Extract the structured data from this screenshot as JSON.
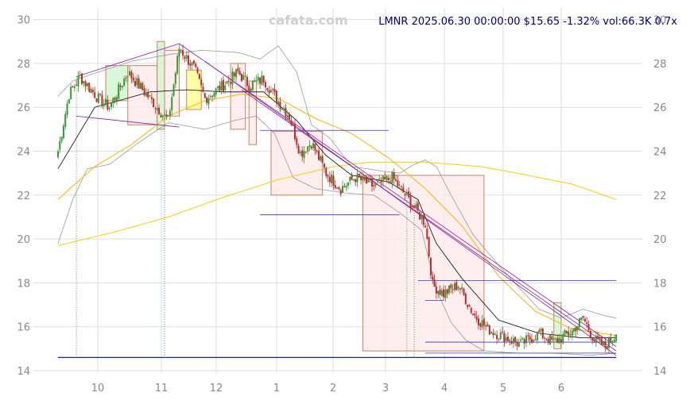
{
  "header": {
    "watermark": "cafata.com",
    "quote": "LMNR 2025.06.30 00:00:00 $15.65 -1.32% vol:66.3K 0.7x"
  },
  "colors": {
    "up": "#2e9d2e",
    "down": "#c0282b",
    "grid": "#dddddd",
    "ma_short": "#000000",
    "ma_mid": "#ffb300",
    "ma_long": "#ffcc00",
    "band": "#999999",
    "trend": "#8b1a9b",
    "level": "#3333cc",
    "box_down_fill": "#fde8e8",
    "box_down_edge": "#d08060",
    "box_up_fill": "#ccf5cc",
    "box_flat_fill": "#ffff88"
  },
  "chart_data": {
    "type": "candlestick",
    "title": "LMNR 2025.06.30 00:00:00 $15.65 -1.32% vol:66.3K 0.7x",
    "ylim": [
      14,
      30.2
    ],
    "y_ticks": [
      14,
      16,
      18,
      20,
      22,
      24,
      26,
      28,
      30
    ],
    "x_tick_labels": [
      "10",
      "11",
      "12",
      "1",
      "2",
      "3",
      "4",
      "5",
      "6"
    ],
    "grid": true,
    "anchors": [
      [
        0,
        24.0
      ],
      [
        6,
        26.6
      ],
      [
        12,
        27.4
      ],
      [
        22,
        26.4
      ],
      [
        28,
        26.0
      ],
      [
        38,
        27.6
      ],
      [
        50,
        26.4
      ],
      [
        60,
        25.4
      ],
      [
        66,
        28.7
      ],
      [
        74,
        27.8
      ],
      [
        80,
        26.4
      ],
      [
        90,
        27.0
      ],
      [
        98,
        27.6
      ],
      [
        104,
        27.0
      ],
      [
        112,
        27.3
      ],
      [
        118,
        26.5
      ],
      [
        126,
        25.6
      ],
      [
        132,
        23.9
      ],
      [
        138,
        24.4
      ],
      [
        146,
        23.0
      ],
      [
        154,
        22.3
      ],
      [
        162,
        22.8
      ],
      [
        172,
        22.4
      ],
      [
        182,
        22.8
      ],
      [
        190,
        21.9
      ],
      [
        196,
        21.2
      ],
      [
        200,
        20.7
      ],
      [
        204,
        17.9
      ],
      [
        210,
        17.5
      ],
      [
        218,
        17.9
      ],
      [
        226,
        16.6
      ],
      [
        234,
        15.9
      ],
      [
        244,
        15.5
      ],
      [
        252,
        15.2
      ],
      [
        262,
        15.7
      ],
      [
        270,
        15.3
      ],
      [
        280,
        15.8
      ],
      [
        286,
        16.4
      ],
      [
        292,
        15.4
      ],
      [
        298,
        15.1
      ],
      [
        304,
        15.65
      ]
    ],
    "ma_short_anchors": [
      [
        0,
        23.2
      ],
      [
        20,
        26.0
      ],
      [
        50,
        26.7
      ],
      [
        70,
        26.8
      ],
      [
        90,
        26.7
      ],
      [
        112,
        26.7
      ],
      [
        130,
        25.4
      ],
      [
        146,
        23.8
      ],
      [
        160,
        22.9
      ],
      [
        180,
        22.6
      ],
      [
        196,
        21.8
      ],
      [
        206,
        19.8
      ],
      [
        220,
        18.2
      ],
      [
        240,
        16.3
      ],
      [
        262,
        15.7
      ],
      [
        285,
        15.5
      ],
      [
        304,
        15.5
      ]
    ],
    "ma_mid_anchors": [
      [
        0,
        21.8
      ],
      [
        20,
        23.3
      ],
      [
        40,
        24.3
      ],
      [
        60,
        25.6
      ],
      [
        80,
        26.3
      ],
      [
        100,
        26.6
      ],
      [
        120,
        26.4
      ],
      [
        140,
        25.5
      ],
      [
        160,
        24.8
      ],
      [
        180,
        23.7
      ],
      [
        200,
        22.3
      ],
      [
        220,
        20.6
      ],
      [
        240,
        18.3
      ],
      [
        260,
        16.7
      ],
      [
        280,
        15.9
      ],
      [
        304,
        15.6
      ]
    ],
    "ma_long_anchors": [
      [
        0,
        19.7
      ],
      [
        30,
        20.3
      ],
      [
        60,
        21.0
      ],
      [
        90,
        21.9
      ],
      [
        120,
        22.7
      ],
      [
        150,
        23.3
      ],
      [
        170,
        23.5
      ],
      [
        200,
        23.5
      ],
      [
        230,
        23.3
      ],
      [
        250,
        23.0
      ],
      [
        280,
        22.5
      ],
      [
        304,
        21.8
      ]
    ],
    "band_upper_anchors": [
      [
        0,
        26.5
      ],
      [
        8,
        27.2
      ],
      [
        18,
        27.5
      ],
      [
        40,
        28.1
      ],
      [
        60,
        28.4
      ],
      [
        78,
        28.6
      ],
      [
        98,
        28.5
      ],
      [
        110,
        28.2
      ],
      [
        120,
        28.8
      ],
      [
        130,
        27.6
      ],
      [
        138,
        25.2
      ],
      [
        148,
        24.6
      ],
      [
        160,
        23.3
      ],
      [
        176,
        23.1
      ],
      [
        186,
        23.0
      ],
      [
        194,
        23.4
      ],
      [
        200,
        23.6
      ],
      [
        206,
        23.3
      ],
      [
        214,
        22.0
      ],
      [
        226,
        20.2
      ],
      [
        240,
        18.8
      ],
      [
        262,
        16.8
      ],
      [
        274,
        16.4
      ],
      [
        286,
        16.8
      ],
      [
        298,
        16.5
      ],
      [
        304,
        16.4
      ]
    ],
    "band_lower_anchors": [
      [
        0,
        19.8
      ],
      [
        8,
        21.8
      ],
      [
        16,
        23.2
      ],
      [
        28,
        23.4
      ],
      [
        44,
        24.4
      ],
      [
        60,
        25.3
      ],
      [
        80,
        25.0
      ],
      [
        96,
        25.4
      ],
      [
        108,
        25.6
      ],
      [
        118,
        24.8
      ],
      [
        128,
        22.8
      ],
      [
        140,
        22.3
      ],
      [
        156,
        22.1
      ],
      [
        172,
        22.0
      ],
      [
        186,
        21.2
      ],
      [
        198,
        20.4
      ],
      [
        206,
        17.7
      ],
      [
        214,
        16.2
      ],
      [
        222,
        15.4
      ],
      [
        232,
        14.9
      ],
      [
        250,
        14.8
      ],
      [
        270,
        14.8
      ],
      [
        290,
        14.7
      ],
      [
        304,
        14.8
      ]
    ],
    "boxes": [
      {
        "kind": "up",
        "i0": 26,
        "i1": 38,
        "y0": 26.3,
        "y1": 27.9
      },
      {
        "kind": "down",
        "i0": 38,
        "i1": 54,
        "y0": 25.2,
        "y1": 27.9
      },
      {
        "kind": "up",
        "i0": 54,
        "i1": 58,
        "y0": 25.0,
        "y1": 29.0
      },
      {
        "kind": "down",
        "i0": 58,
        "i1": 66,
        "y0": 25.6,
        "y1": 28.6
      },
      {
        "kind": "flat",
        "i0": 70,
        "i1": 78,
        "y0": 25.9,
        "y1": 27.7
      },
      {
        "kind": "down",
        "i0": 94,
        "i1": 102,
        "y0": 25.0,
        "y1": 28.0
      },
      {
        "kind": "down",
        "i0": 104,
        "i1": 108,
        "y0": 24.3,
        "y1": 27.2
      },
      {
        "kind": "down",
        "i0": 116,
        "i1": 144,
        "y0": 22.0,
        "y1": 24.9
      },
      {
        "kind": "down",
        "i0": 166,
        "i1": 232,
        "y0": 14.9,
        "y1": 22.9
      },
      {
        "kind": "up",
        "i0": 270,
        "i1": 274,
        "y0": 15.0,
        "y1": 17.1
      }
    ],
    "levels": [
      {
        "i0": 110,
        "i1": 180,
        "y": 24.95
      },
      {
        "i0": 110,
        "i1": 186,
        "y": 21.1
      },
      {
        "i0": 196,
        "i1": 304,
        "y": 18.1
      },
      {
        "i0": 200,
        "i1": 210,
        "y": 17.2
      },
      {
        "i0": 200,
        "i1": 304,
        "y": 15.3
      },
      {
        "i0": 200,
        "i1": 304,
        "y": 14.8
      }
    ],
    "trendlines": [
      {
        "i0": 10,
        "y0": 27.4,
        "i1": 66,
        "y1": 28.9
      },
      {
        "i0": 10,
        "y0": 25.6,
        "i1": 66,
        "y1": 25.1
      },
      {
        "i0": 66,
        "y0": 28.9,
        "i1": 304,
        "y1": 15.1
      },
      {
        "i0": 80,
        "y0": 28.1,
        "i1": 304,
        "y1": 14.7
      },
      {
        "i0": 100,
        "y0": 26.8,
        "i1": 304,
        "y1": 14.9
      }
    ],
    "markers": [
      {
        "i": 10,
        "y": 14.6
      },
      {
        "i": 58,
        "y": 14.6
      },
      {
        "i": 190,
        "y": 14.6
      },
      {
        "i": 194,
        "y": 14.6
      }
    ],
    "baseline": 14.6,
    "n_bars": 305
  }
}
